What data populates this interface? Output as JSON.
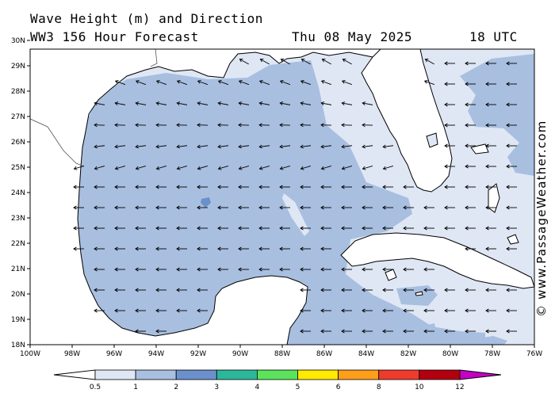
{
  "header": {
    "title": "Wave Height (m) and Direction",
    "subtitle": "WW3 156 Hour Forecast",
    "date": "Thu 08 May 2025",
    "time": "18 UTC"
  },
  "credit": "© www.PassageWeather.com",
  "axes": {
    "lat_labels": [
      "18N",
      "19N",
      "20N",
      "21N",
      "22N",
      "23N",
      "24N",
      "25N",
      "26N",
      "27N",
      "28N",
      "29N",
      "30N"
    ],
    "lon_labels": [
      "100W",
      "98W",
      "96W",
      "94W",
      "92W",
      "90W",
      "88W",
      "86W",
      "84W",
      "82W",
      "80W",
      "78W",
      "76W"
    ]
  },
  "map": {
    "region": "Gulf of Mexico",
    "lat_range": [
      18,
      30.5
    ],
    "lon_range": [
      -100,
      -76
    ],
    "wave_direction": "westward, turning northwest in the northern Gulf",
    "colors": {
      "land": "#ffffff",
      "band_0_5_1": "#dfe7f5",
      "band_1_2": "#a8bfe0",
      "band_2_3": "#6b90cc"
    }
  },
  "legend": {
    "labels": [
      "0.5",
      "1",
      "2",
      "3",
      "4",
      "5",
      "6",
      "8",
      "10",
      "12"
    ],
    "colors": [
      "#dfe7f5",
      "#a8bfe0",
      "#6b90cc",
      "#2bb89a",
      "#5be35b",
      "#ffea00",
      "#ff9e1a",
      "#ef3b2c",
      "#b3000f",
      "#c400c4"
    ]
  }
}
